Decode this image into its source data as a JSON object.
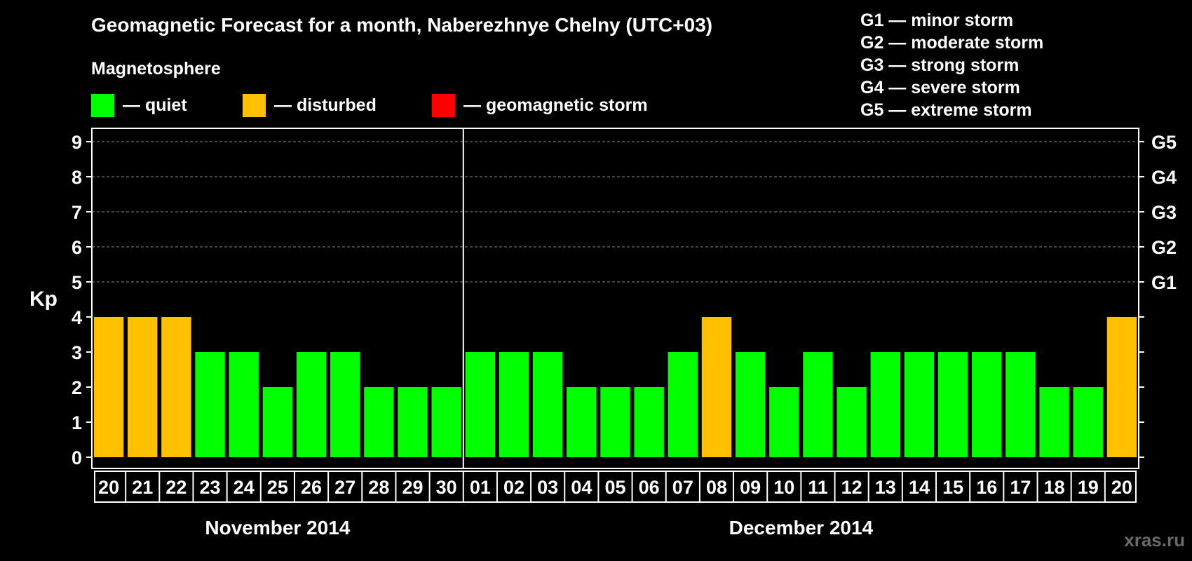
{
  "chart_data": {
    "type": "bar",
    "title": "Geomagnetic Forecast for a month, Naberezhnye Chelny (UTC+03)",
    "subtitle": "Magnetosphere",
    "ylabel": "Kp",
    "ylim": [
      0,
      9
    ],
    "yticks": [
      "0",
      "1",
      "2",
      "3",
      "4",
      "5",
      "6",
      "7",
      "8",
      "9"
    ],
    "storm_levels": [
      {
        "kp": 5,
        "label": "G1"
      },
      {
        "kp": 6,
        "label": "G2"
      },
      {
        "kp": 7,
        "label": "G3"
      },
      {
        "kp": 8,
        "label": "G4"
      },
      {
        "kp": 9,
        "label": "G5"
      }
    ],
    "legend": [
      {
        "label": "— quiet",
        "color": "#00ff00"
      },
      {
        "label": "— disturbed",
        "color": "#ffc000"
      },
      {
        "label": "— geomagnetic storm",
        "color": "#ff0000"
      }
    ],
    "storm_scale": [
      "G1 — minor storm",
      "G2 — moderate storm",
      "G3 — strong storm",
      "G4 — severe storm",
      "G5 — extreme storm"
    ],
    "categories": [
      "20",
      "21",
      "22",
      "23",
      "24",
      "25",
      "26",
      "27",
      "28",
      "29",
      "30",
      "01",
      "02",
      "03",
      "04",
      "05",
      "06",
      "07",
      "08",
      "09",
      "10",
      "11",
      "12",
      "13",
      "14",
      "15",
      "16",
      "17",
      "18",
      "19",
      "20"
    ],
    "values": [
      4,
      4,
      4,
      3,
      3,
      2,
      3,
      3,
      2,
      2,
      2,
      3,
      3,
      3,
      2,
      2,
      2,
      3,
      4,
      3,
      2,
      3,
      2,
      3,
      3,
      3,
      3,
      3,
      2,
      2,
      4
    ],
    "colors": {
      "quiet": "#00ff00",
      "disturbed": "#ffc000",
      "storm": "#ff0000"
    },
    "months": [
      {
        "label": "November 2014",
        "days": 11
      },
      {
        "label": "December 2014",
        "days": 20
      }
    ]
  },
  "watermark": "xras.ru"
}
